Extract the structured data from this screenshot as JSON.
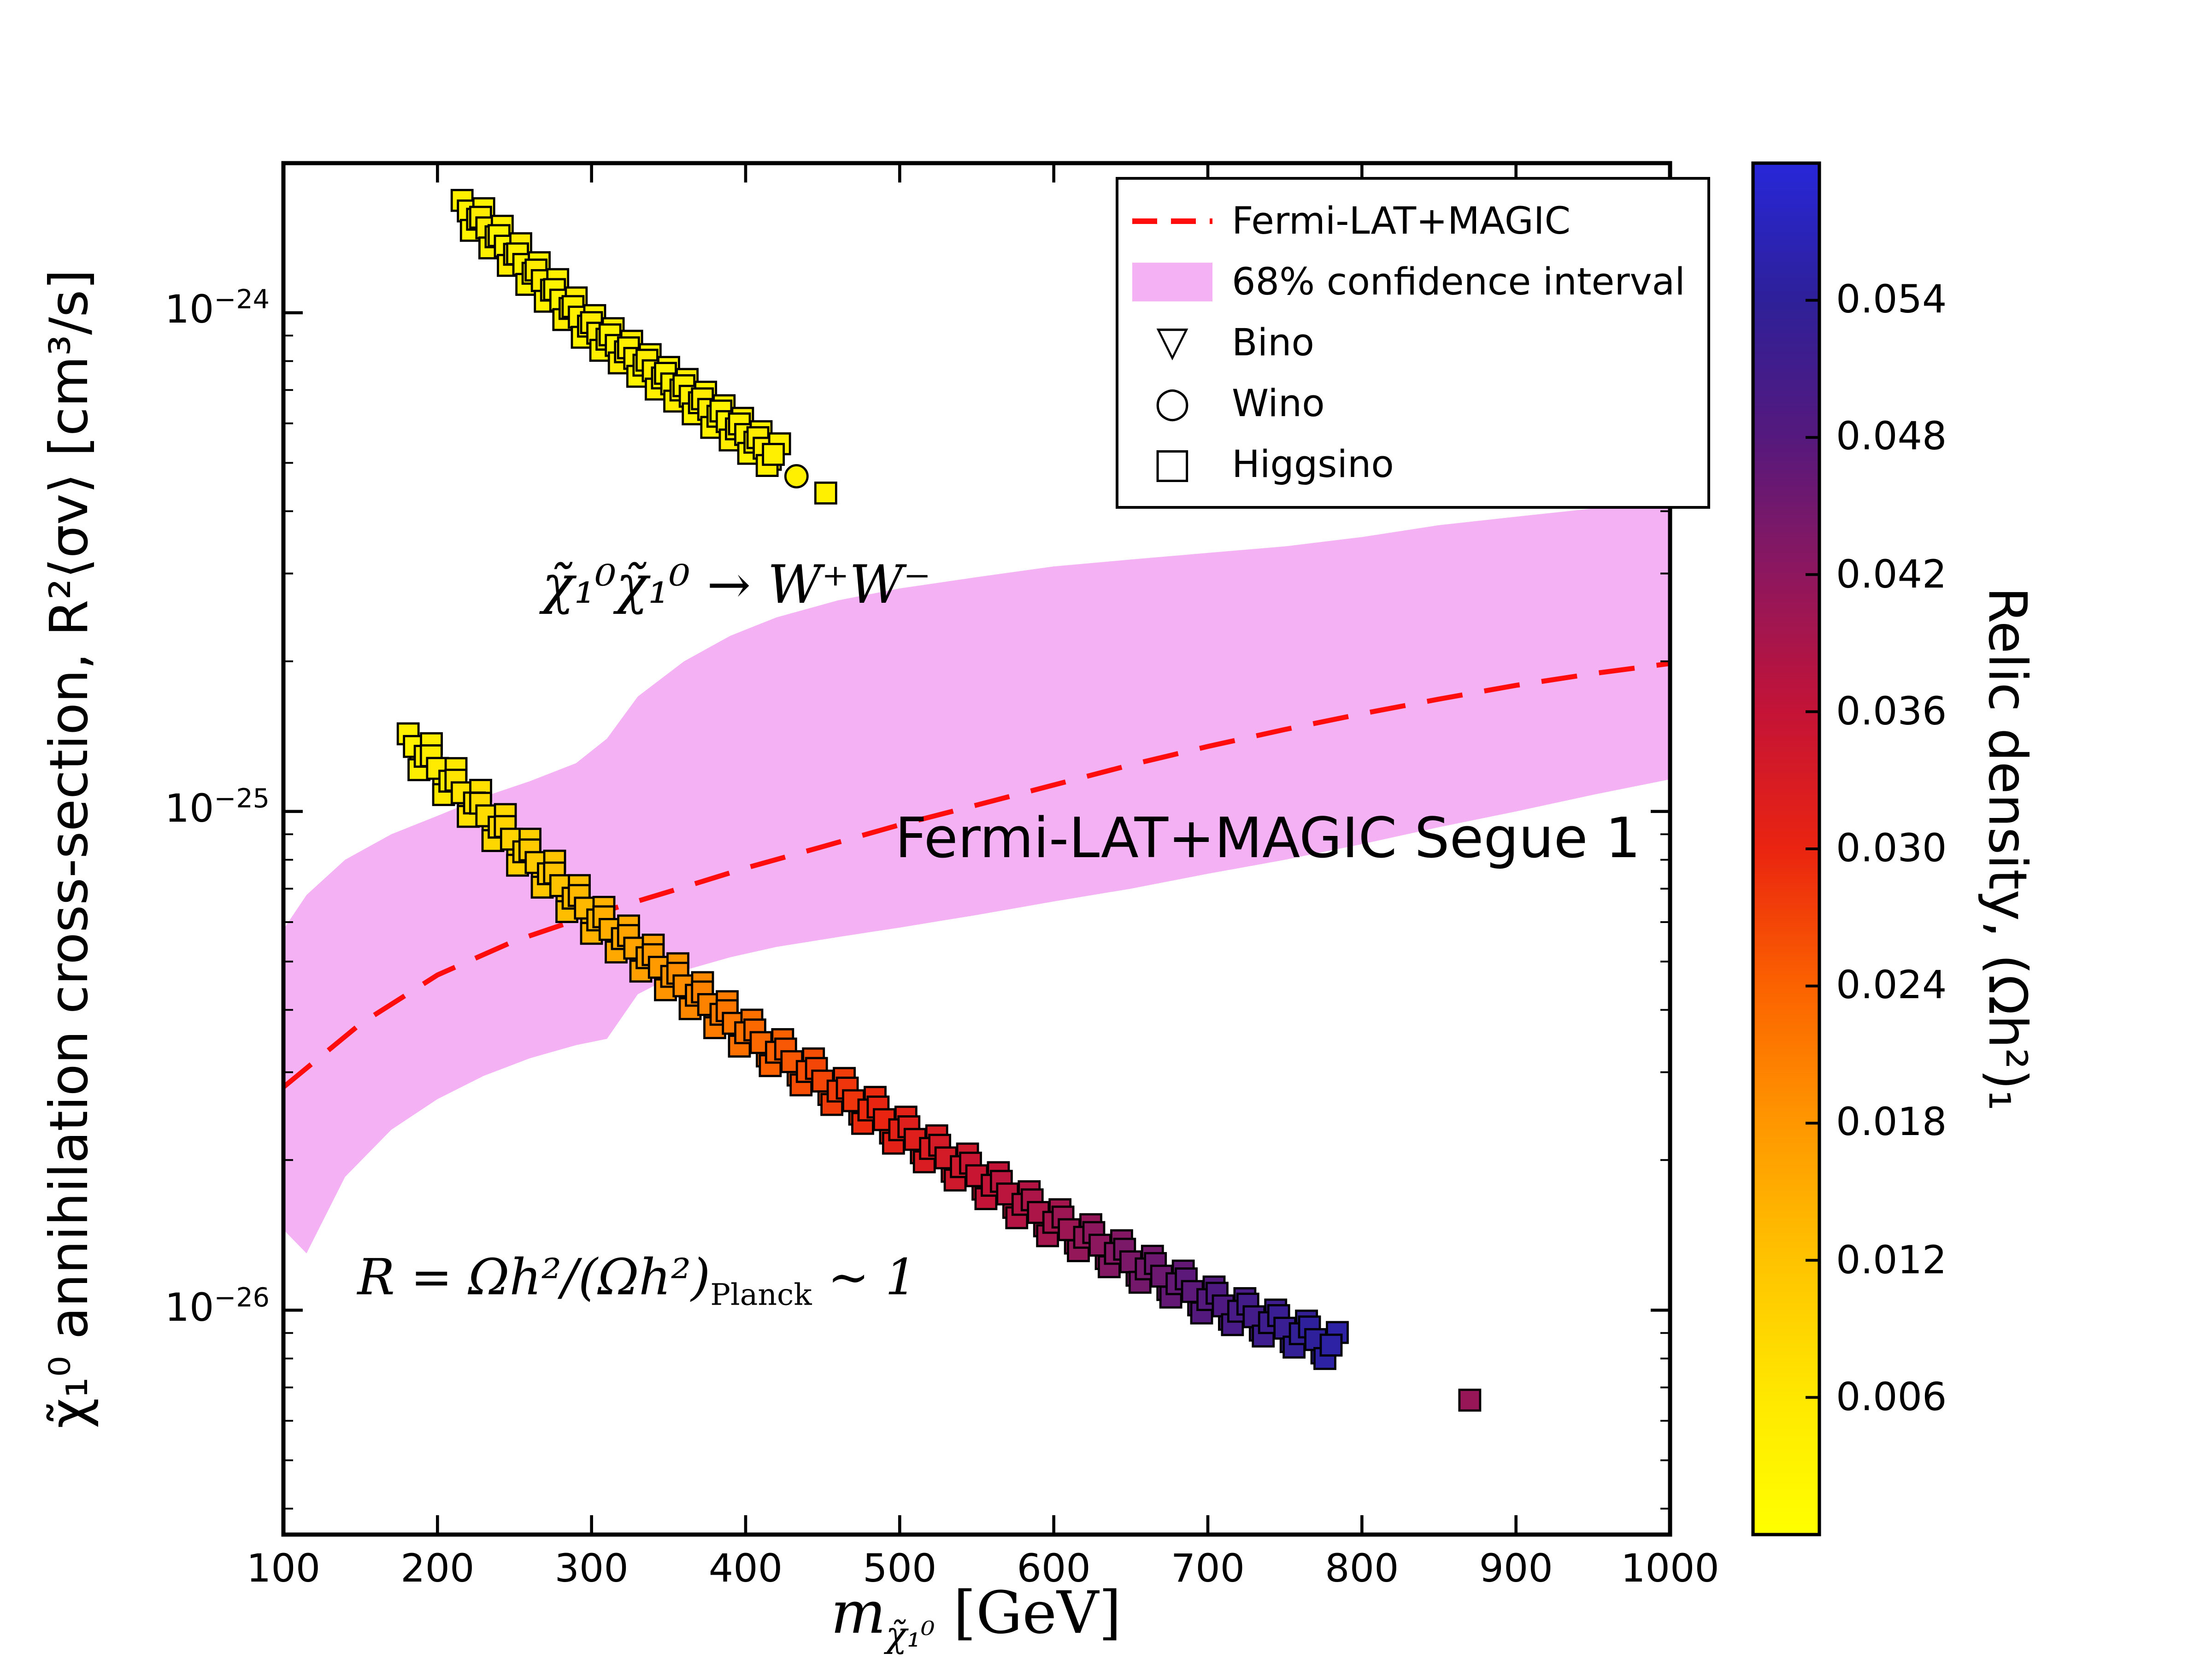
{
  "chart_data": {
    "type": "scatter",
    "title": "",
    "grid": false,
    "x_axis": {
      "label_base": "m",
      "label_sub": "χ̃₁⁰",
      "label_unit": " [GeV]",
      "range": [
        100,
        1000
      ],
      "ticks": [
        100,
        200,
        300,
        400,
        500,
        600,
        700,
        800,
        900,
        1000
      ]
    },
    "y_axis": {
      "label": "χ̃₁⁰ annihilation cross-section, R²⟨σv⟩ [cm³/s]",
      "scale": "log",
      "range_exponents": [
        -26.45,
        -23.7
      ],
      "ticks": [
        {
          "value": 1e-24,
          "base": "10",
          "exp": "−24"
        },
        {
          "value": 1e-25,
          "base": "10",
          "exp": "−25"
        },
        {
          "value": 1e-26,
          "base": "10",
          "exp": "−26"
        }
      ]
    },
    "colorbar": {
      "label": "Relic density, (Ωh²)₁",
      "range": [
        0,
        0.06
      ],
      "ticks": [
        0.006,
        0.012,
        0.018,
        0.024,
        0.03,
        0.036,
        0.042,
        0.048,
        0.054
      ],
      "colormap_stops": [
        [
          0.0,
          "#ffff00"
        ],
        [
          0.1,
          "#ffe800"
        ],
        [
          0.2,
          "#ffc300"
        ],
        [
          0.3,
          "#ff9700"
        ],
        [
          0.4,
          "#fb6200"
        ],
        [
          0.5,
          "#ea2410"
        ],
        [
          0.6,
          "#c41336"
        ],
        [
          0.7,
          "#8e175e"
        ],
        [
          0.8,
          "#55197d"
        ],
        [
          0.9,
          "#2e2099"
        ],
        [
          1.0,
          "#2727d8"
        ]
      ]
    },
    "band": {
      "label": "68% confidence interval",
      "color": "#ee82ee",
      "opacity": 0.62,
      "x": [
        100,
        115,
        140,
        170,
        200,
        230,
        260,
        290,
        310,
        330,
        360,
        390,
        420,
        460,
        500,
        550,
        600,
        650,
        700,
        750,
        800,
        850,
        900,
        950,
        1000
      ],
      "lower": [
        1.45e-26,
        1.3e-26,
        1.85e-26,
        2.3e-26,
        2.65e-26,
        2.95e-26,
        3.2e-26,
        3.4e-26,
        3.5e-26,
        4.3e-26,
        4.8e-26,
        5.1e-26,
        5.35e-26,
        5.6e-26,
        5.85e-26,
        6.2e-26,
        6.6e-26,
        7e-26,
        7.5e-26,
        8e-26,
        8.6e-26,
        9.3e-26,
        1e-25,
        1.08e-25,
        1.16e-25
      ],
      "upper": [
        5.8e-26,
        6.8e-26,
        8e-26,
        9e-26,
        9.8e-26,
        1.07e-25,
        1.15e-25,
        1.25e-25,
        1.4e-25,
        1.7e-25,
        2e-25,
        2.25e-25,
        2.45e-25,
        2.65e-25,
        2.8e-25,
        2.95e-25,
        3.1e-25,
        3.2e-25,
        3.3e-25,
        3.4e-25,
        3.55e-25,
        3.75e-25,
        3.9e-25,
        4.05e-25,
        4.2e-25
      ]
    },
    "line": {
      "label": "Fermi-LAT+MAGIC",
      "color": "#ff0d0d",
      "style": "dashed",
      "x": [
        100,
        150,
        200,
        250,
        300,
        350,
        400,
        450,
        500,
        550,
        600,
        650,
        700,
        750,
        800,
        850,
        900,
        950,
        1000
      ],
      "y": [
        2.8e-26,
        3.75e-26,
        4.7e-26,
        5.5e-26,
        6.2e-26,
        6.9e-26,
        7.7e-26,
        8.5e-26,
        9.4e-26,
        1.03e-25,
        1.13e-25,
        1.24e-25,
        1.35e-25,
        1.46e-25,
        1.57e-25,
        1.68e-25,
        1.79e-25,
        1.89e-25,
        1.98e-25
      ]
    },
    "legend": {
      "entries": [
        {
          "label": "Fermi-LAT+MAGIC",
          "sample": "dashed-line"
        },
        {
          "label": "68% confidence interval",
          "sample": "patch"
        },
        {
          "label": "Bino",
          "sample": "marker",
          "glyph": "▽"
        },
        {
          "label": "Wino",
          "sample": "marker",
          "glyph": "○"
        },
        {
          "label": "Higgsino",
          "sample": "marker",
          "glyph": "□"
        }
      ]
    },
    "annotations": [
      {
        "text": "χ̃₁⁰χ̃₁⁰ → W⁺W⁻",
        "x": 268,
        "y": 2.85e-25
      },
      {
        "text": "Fermi-LAT+MAGIC Segue 1",
        "x": 497,
        "y": 8.8e-26
      },
      {
        "prefix": "R = Ωh²/(Ωh²)",
        "sub": "Planck",
        "suffix": " ∼ 1",
        "x": 148,
        "y": 1.14e-26
      }
    ],
    "series": [
      {
        "name": "relic-ratio-one branch",
        "marker": "square",
        "spread": 0.06,
        "points": [
          [
            185,
            1.35e-25,
            0.004
          ],
          [
            192,
            1.29e-25,
            0.0046
          ],
          [
            200,
            1.22e-25,
            0.0053
          ],
          [
            208,
            1.15e-25,
            0.006
          ],
          [
            216,
            1.09e-25,
            0.0067
          ],
          [
            224,
            1.04e-25,
            0.0073
          ],
          [
            232,
            9.8e-26,
            0.008
          ],
          [
            240,
            9.3e-26,
            0.0087
          ],
          [
            248,
            8.8e-26,
            0.0094
          ],
          [
            256,
            8.3e-26,
            0.0101
          ],
          [
            264,
            7.9e-26,
            0.0108
          ],
          [
            272,
            7.5e-26,
            0.0115
          ],
          [
            280,
            7.1e-26,
            0.0121
          ],
          [
            288,
            6.7e-26,
            0.0128
          ],
          [
            296,
            6.4e-26,
            0.0135
          ],
          [
            304,
            6.06e-26,
            0.0142
          ],
          [
            312,
            5.8e-26,
            0.0149
          ],
          [
            320,
            5.56e-26,
            0.0156
          ],
          [
            328,
            5.32e-26,
            0.0163
          ],
          [
            336,
            5.09e-26,
            0.0169
          ],
          [
            344,
            4.87e-26,
            0.0176
          ],
          [
            352,
            4.67e-26,
            0.0183
          ],
          [
            360,
            4.47e-26,
            0.019
          ],
          [
            368,
            4.28e-26,
            0.0197
          ],
          [
            376,
            4.1e-26,
            0.0204
          ],
          [
            384,
            3.92e-26,
            0.0211
          ],
          [
            392,
            3.76e-26,
            0.0217
          ],
          [
            400,
            3.6e-26,
            0.0224
          ],
          [
            410,
            3.44e-26,
            0.0233
          ],
          [
            420,
            3.29e-26,
            0.0241
          ],
          [
            430,
            3.15e-26,
            0.025
          ],
          [
            440,
            3.01e-26,
            0.0259
          ],
          [
            450,
            2.88e-26,
            0.0267
          ],
          [
            460,
            2.75e-26,
            0.0276
          ],
          [
            470,
            2.63e-26,
            0.0284
          ],
          [
            480,
            2.52e-26,
            0.0293
          ],
          [
            490,
            2.41e-26,
            0.0301
          ],
          [
            500,
            2.3e-26,
            0.031
          ],
          [
            510,
            2.2e-26,
            0.0319
          ],
          [
            520,
            2.11e-26,
            0.0327
          ],
          [
            530,
            2.02e-26,
            0.0336
          ],
          [
            540,
            1.94e-26,
            0.0344
          ],
          [
            550,
            1.86e-26,
            0.0353
          ],
          [
            560,
            1.78e-26,
            0.0361
          ],
          [
            570,
            1.71e-26,
            0.037
          ],
          [
            580,
            1.63e-26,
            0.0379
          ],
          [
            590,
            1.57e-26,
            0.0387
          ],
          [
            600,
            1.5e-26,
            0.0396
          ],
          [
            610,
            1.45e-26,
            0.0404
          ],
          [
            620,
            1.4e-26,
            0.0413
          ],
          [
            630,
            1.35e-26,
            0.0421
          ],
          [
            640,
            1.3e-26,
            0.043
          ],
          [
            650,
            1.25e-26,
            0.0439
          ],
          [
            660,
            1.21e-26,
            0.0447
          ],
          [
            670,
            1.17e-26,
            0.0456
          ],
          [
            680,
            1.13e-26,
            0.0464
          ],
          [
            690,
            1.09e-26,
            0.0473
          ],
          [
            700,
            1.05e-26,
            0.0481
          ],
          [
            710,
            1.02e-26,
            0.049
          ],
          [
            720,
            9.95e-27,
            0.0499
          ],
          [
            730,
            9.7e-27,
            0.0507
          ],
          [
            740,
            9.44e-27,
            0.0516
          ],
          [
            750,
            9.2e-27,
            0.0524
          ],
          [
            760,
            8.97e-27,
            0.0533
          ],
          [
            770,
            8.73e-27,
            0.0541
          ],
          [
            780,
            8.51e-27,
            0.055
          ]
        ]
      },
      {
        "name": "WW branch",
        "marker": "square",
        "spread": 0.05,
        "points": [
          [
            220,
            1.6e-24,
            0.004
          ],
          [
            226,
            1.54e-24,
            0.003
          ],
          [
            232,
            1.48e-24,
            0.005
          ],
          [
            238,
            1.42e-24,
            0.004
          ],
          [
            244,
            1.36e-24,
            0.003
          ],
          [
            250,
            1.31e-24,
            0.005
          ],
          [
            256,
            1.25e-24,
            0.004
          ],
          [
            262,
            1.2e-24,
            0.003
          ],
          [
            268,
            1.16e-24,
            0.005
          ],
          [
            274,
            1.11e-24,
            0.004
          ],
          [
            280,
            1.06e-24,
            0.003
          ],
          [
            286,
            1.02e-24,
            0.005
          ],
          [
            292,
            9.8e-25,
            0.004
          ],
          [
            298,
            9.4e-25,
            0.003
          ],
          [
            304,
            9.1e-25,
            0.005
          ],
          [
            310,
            8.85e-25,
            0.004
          ],
          [
            316,
            8.6e-25,
            0.003
          ],
          [
            322,
            8.35e-25,
            0.005
          ],
          [
            328,
            8.1e-25,
            0.004
          ],
          [
            334,
            7.85e-25,
            0.003
          ],
          [
            340,
            7.65e-25,
            0.005
          ],
          [
            346,
            7.4e-25,
            0.004
          ],
          [
            352,
            7.2e-25,
            0.003
          ],
          [
            358,
            7e-25,
            0.005
          ],
          [
            364,
            6.8e-25,
            0.004
          ],
          [
            370,
            6.6e-25,
            0.003
          ],
          [
            376,
            6.4e-25,
            0.005
          ],
          [
            382,
            6.2e-25,
            0.004
          ],
          [
            388,
            6.05e-25,
            0.003
          ],
          [
            394,
            5.85e-25,
            0.005
          ],
          [
            400,
            5.7e-25,
            0.004
          ],
          [
            406,
            5.5e-25,
            0.003
          ],
          [
            412,
            5.35e-25,
            0.005
          ],
          [
            418,
            5.2e-25,
            0.004
          ]
        ]
      },
      {
        "name": "wino point",
        "marker": "circle",
        "spread": 0,
        "points": [
          [
            433,
            4.7e-25,
            0.004
          ]
        ]
      },
      {
        "name": "outlying squares",
        "marker": "square",
        "spread": 0,
        "points": [
          [
            452,
            4.35e-25,
            0.004
          ],
          [
            870,
            6.6e-27,
            0.041
          ]
        ]
      }
    ]
  }
}
